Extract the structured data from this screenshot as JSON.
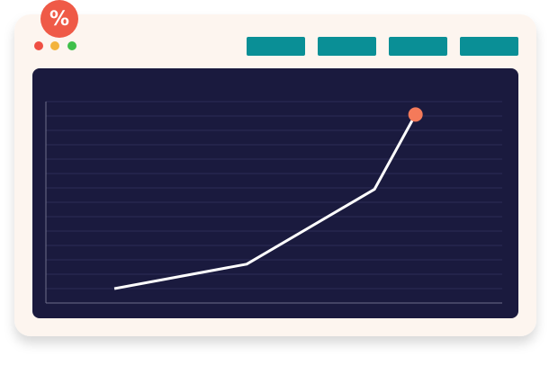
{
  "icon": {
    "label": "%"
  },
  "chart_data": {
    "type": "line",
    "x": [
      15,
      44,
      72,
      81
    ],
    "values": [
      1,
      2.7,
      7.9,
      13.1
    ],
    "color": "#ffffff",
    "marker_color": "#f47a5a",
    "xlim": [
      0,
      100
    ],
    "ylim": [
      0,
      14
    ],
    "yticks": [
      0,
      1,
      2,
      3,
      4,
      5,
      6,
      7,
      8,
      9,
      10,
      11,
      12,
      13,
      14
    ],
    "grid": true
  }
}
